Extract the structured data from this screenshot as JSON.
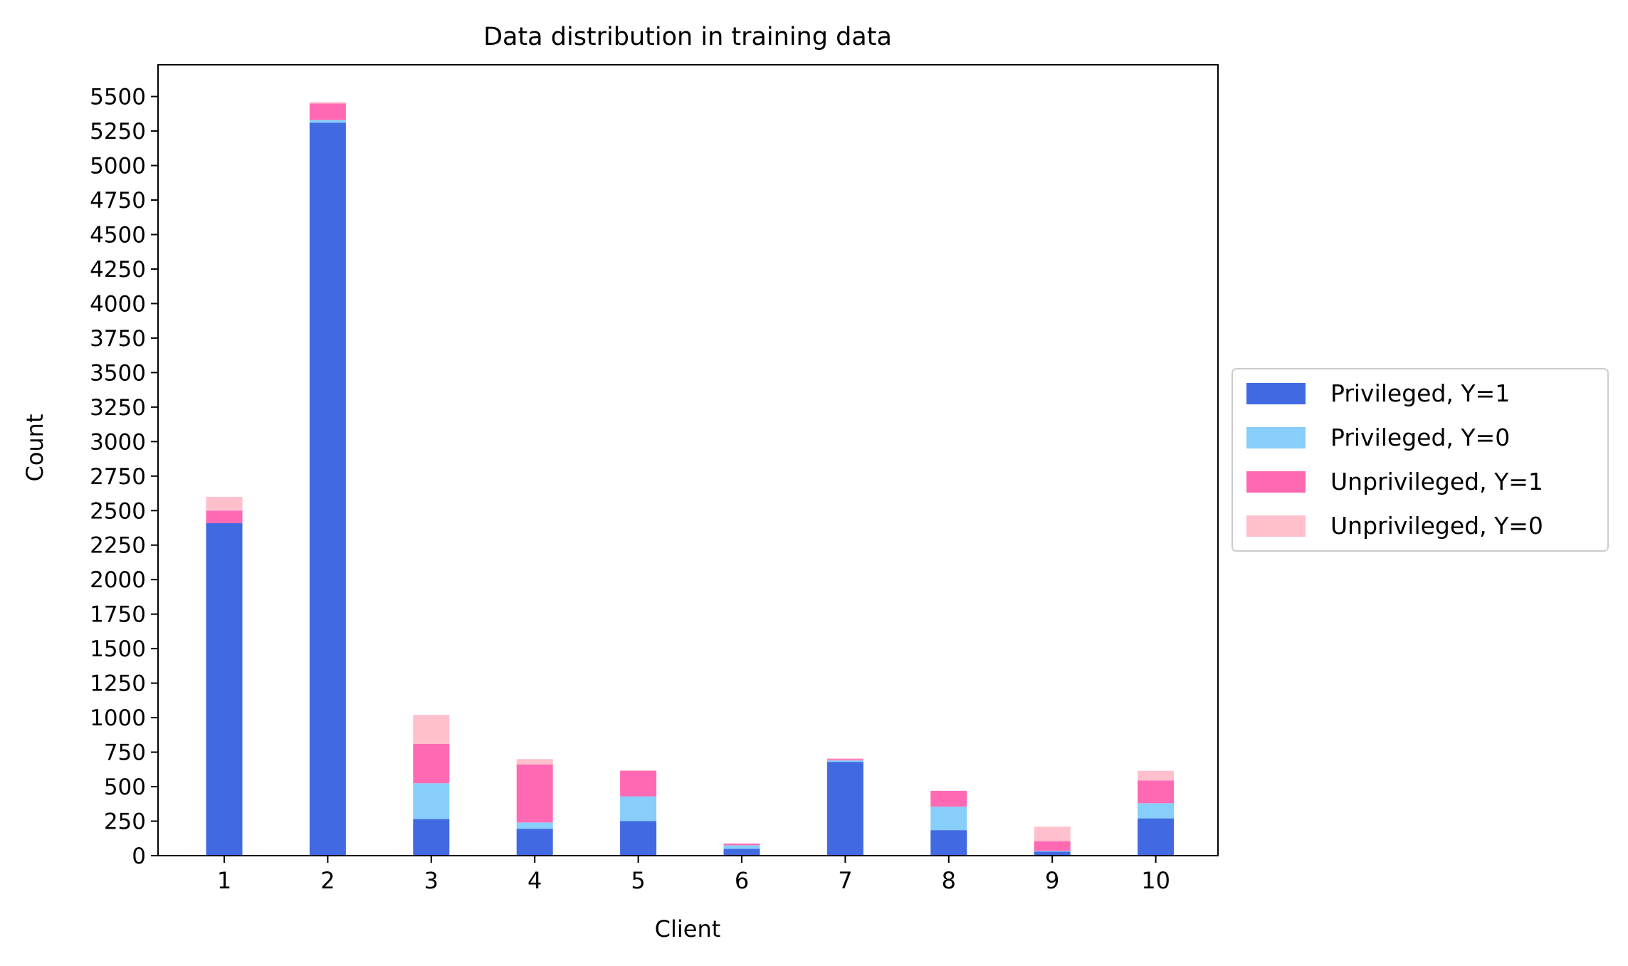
{
  "chart_data": {
    "type": "bar",
    "stacked": true,
    "title": "Data distribution in training data",
    "xlabel": "Client",
    "ylabel": "Count",
    "categories": [
      "1",
      "2",
      "3",
      "4",
      "5",
      "6",
      "7",
      "8",
      "9",
      "10"
    ],
    "ylim": [
      0,
      5730
    ],
    "yticks": [
      0,
      250,
      500,
      750,
      1000,
      1250,
      1500,
      1750,
      2000,
      2250,
      2500,
      2750,
      3000,
      3250,
      3500,
      3750,
      4000,
      4250,
      4500,
      4750,
      5000,
      5250,
      5500
    ],
    "legend_position": "center-right-outside",
    "series": [
      {
        "name": "Privileged, Y=1",
        "color": "#4169e1",
        "values": [
          2410,
          5310,
          265,
          195,
          250,
          50,
          680,
          185,
          30,
          270
        ]
      },
      {
        "name": "Privileged, Y=0",
        "color": "#87cefa",
        "values": [
          0,
          20,
          260,
          45,
          180,
          25,
          10,
          170,
          5,
          110
        ]
      },
      {
        "name": "Unprivileged, Y=1",
        "color": "#ff69b4",
        "values": [
          90,
          120,
          285,
          420,
          185,
          10,
          10,
          115,
          70,
          165
        ]
      },
      {
        "name": "Unprivileged, Y=0",
        "color": "#ffc0cb",
        "values": [
          100,
          10,
          210,
          40,
          5,
          5,
          5,
          0,
          105,
          70
        ]
      }
    ]
  }
}
